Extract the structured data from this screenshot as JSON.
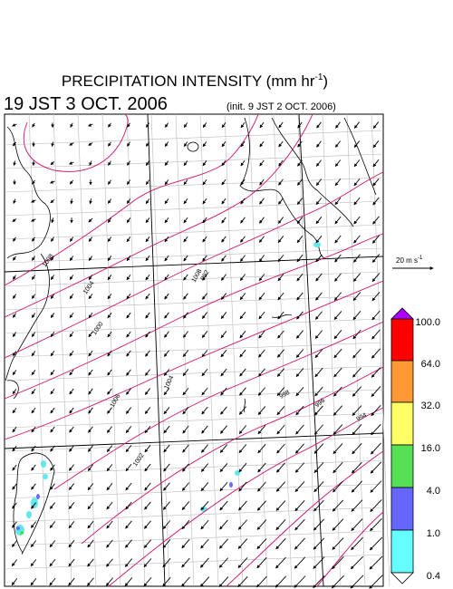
{
  "header": {
    "title": "PRECIPITATION INTENSITY (mm hr",
    "title_sup": "-1",
    "title_end": ")",
    "valid_time": "19 JST 3 OCT. 2006",
    "init_time": "(init. 9 JST 2 OCT. 2006)"
  },
  "reference_vector": {
    "label": "20 m s",
    "label_sup": "-1"
  },
  "contour_labels": [
    "1008",
    "1004",
    "1000",
    "1008",
    "1006",
    "1004",
    "1002",
    "998",
    "996",
    "994",
    "992"
  ],
  "colorbar": {
    "labels": [
      "100.0",
      "64.0",
      "32.0",
      "16.0",
      "4.0",
      "1.0",
      "0.4"
    ]
  }
}
